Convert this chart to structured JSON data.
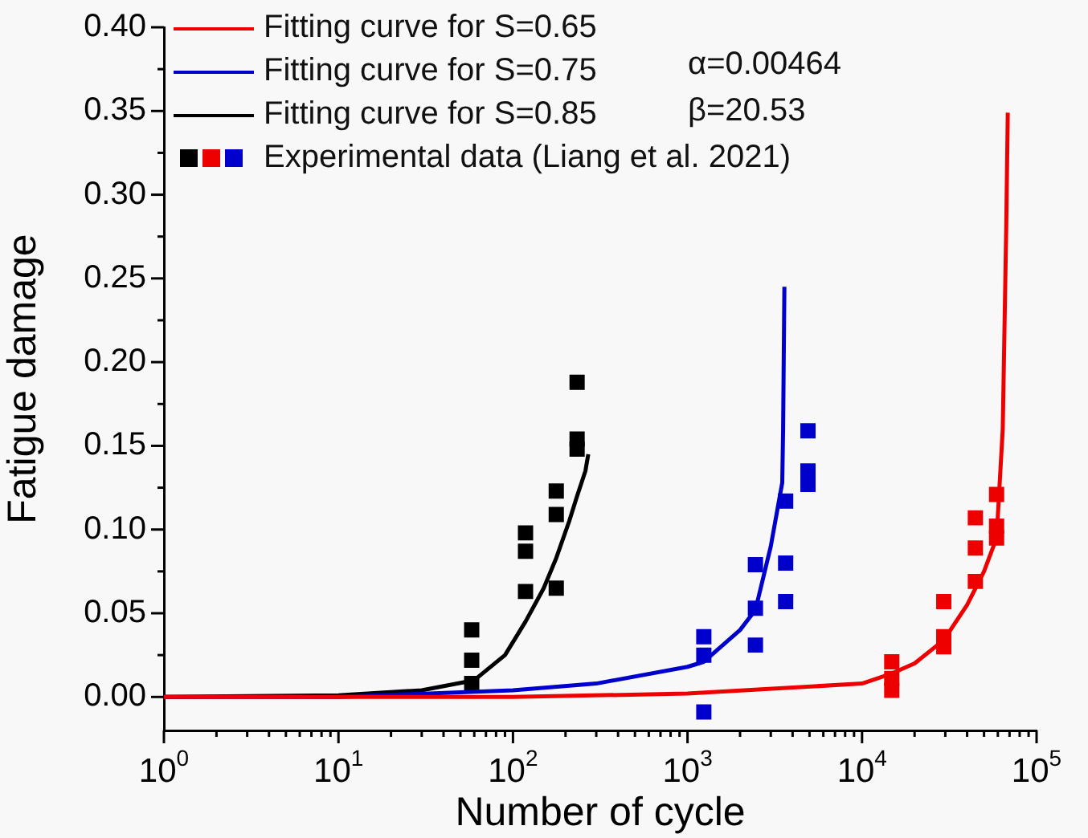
{
  "chart_data": {
    "type": "line",
    "xlabel": "Number of cycle",
    "ylabel": "Fatigue damage",
    "log": "x",
    "grid": false,
    "legend": "top left",
    "line_style": "solid",
    "xlim": [
      1,
      100000
    ],
    "ylim": [
      -0.02,
      0.4
    ],
    "xticks": [
      {
        "value": 1,
        "label": "10$^{0}$"
      },
      {
        "value": 2,
        "label": null
      },
      {
        "value": 3,
        "label": null
      },
      {
        "value": 4,
        "label": null
      },
      {
        "value": 5,
        "label": null
      },
      {
        "value": 6,
        "label": null
      },
      {
        "value": 7,
        "label": null
      },
      {
        "value": 8,
        "label": null
      },
      {
        "value": 9,
        "label": null
      },
      {
        "value": 10,
        "label": "10$^{1}$"
      },
      {
        "value": 20,
        "label": null
      },
      {
        "value": 30,
        "label": null
      },
      {
        "value": 40,
        "label": null
      },
      {
        "value": 50,
        "label": null
      },
      {
        "value": 60,
        "label": null
      },
      {
        "value": 70,
        "label": null
      },
      {
        "value": 80,
        "label": null
      },
      {
        "value": 90,
        "label": null
      },
      {
        "value": 100,
        "label": "10$^{2}$"
      },
      {
        "value": 200,
        "label": null
      },
      {
        "value": 300,
        "label": null
      },
      {
        "value": 400,
        "label": null
      },
      {
        "value": 500,
        "label": null
      },
      {
        "value": 600,
        "label": null
      },
      {
        "value": 700,
        "label": null
      },
      {
        "value": 800,
        "label": null
      },
      {
        "value": 900,
        "label": null
      },
      {
        "value": 1000,
        "label": "10$^{3}$"
      },
      {
        "value": 2000,
        "label": null
      },
      {
        "value": 3000,
        "label": null
      },
      {
        "value": 4000,
        "label": null
      },
      {
        "value": 5000,
        "label": null
      },
      {
        "value": 6000,
        "label": null
      },
      {
        "value": 7000,
        "label": null
      },
      {
        "value": 8000,
        "label": null
      },
      {
        "value": 9000,
        "label": null
      },
      {
        "value": 10000,
        "label": "10$^{4}$"
      },
      {
        "value": 20000,
        "label": null
      },
      {
        "value": 30000,
        "label": null
      },
      {
        "value": 40000,
        "label": null
      },
      {
        "value": 50000,
        "label": null
      },
      {
        "value": 60000,
        "label": null
      },
      {
        "value": 70000,
        "label": null
      },
      {
        "value": 80000,
        "label": null
      },
      {
        "value": 90000,
        "label": null
      },
      {
        "value": 100000,
        "label": "10$^{5}$"
      }
    ],
    "yticks": [
      {
        "value": 0,
        "label": "0.00"
      },
      {
        "value": 0.025,
        "label": null
      },
      {
        "value": 0.05,
        "label": "0.05"
      },
      {
        "value": 0.075,
        "label": null
      },
      {
        "value": 0.1,
        "label": "0.10"
      },
      {
        "value": 0.125,
        "label": null
      },
      {
        "value": 0.15,
        "label": "0.15"
      },
      {
        "value": 0.175,
        "label": null
      },
      {
        "value": 0.2,
        "label": "0.20"
      },
      {
        "value": 0.225,
        "label": null
      },
      {
        "value": 0.25,
        "label": "0.25"
      },
      {
        "value": 0.275,
        "label": null
      },
      {
        "value": 0.3,
        "label": "0.30"
      },
      {
        "value": 0.325,
        "label": null
      },
      {
        "value": 0.35,
        "label": "0.35"
      },
      {
        "value": 0.375,
        "label": null
      },
      {
        "value": 0.4,
        "label": "0.40"
      }
    ],
    "annotations": [
      "α=0.00464",
      "β=20.53"
    ],
    "series": [
      {
        "name": "Fitting curve for S=0.65",
        "color": "#ee0000",
        "x": [
          1,
          100,
          1000,
          10000,
          14800,
          20000,
          29400,
          40000,
          50000,
          59000,
          64000,
          67000,
          68400
        ],
        "values": [
          0,
          0,
          0.002,
          0.008,
          0.014,
          0.02,
          0.034,
          0.055,
          0.075,
          0.095,
          0.16,
          0.28,
          0.349
        ]
      },
      {
        "name": "Fitting curve for S=0.75",
        "color": "#0000cc",
        "x": [
          1,
          10,
          100,
          300,
          1000,
          1240,
          2000,
          2450,
          3000,
          3490,
          3530,
          3590
        ],
        "values": [
          0,
          0,
          0.004,
          0.008,
          0.018,
          0.021,
          0.04,
          0.052,
          0.09,
          0.128,
          0.16,
          0.245
        ]
      },
      {
        "name": "Fitting curve for S=0.85",
        "color": "#000000",
        "x": [
          1,
          10,
          30,
          60,
          90,
          118,
          150,
          177,
          210,
          233,
          260,
          270
        ],
        "values": [
          0,
          0.001,
          0.004,
          0.01,
          0.025,
          0.045,
          0.065,
          0.083,
          0.105,
          0.12,
          0.135,
          0.145
        ]
      },
      {
        "type": "scatter",
        "marker": "square",
        "color": "#000000",
        "x": [
          58,
          58,
          58,
          118,
          118,
          118,
          177,
          177,
          177,
          233,
          233,
          233
        ],
        "values": [
          0.04,
          0.022,
          0.008,
          0.098,
          0.087,
          0.063,
          0.123,
          0.109,
          0.065,
          0.188,
          0.154,
          0.148
        ]
      },
      {
        "type": "scatter",
        "marker": "square",
        "color": "#ee0000",
        "x": [
          14800,
          14800,
          14800,
          29400,
          29400,
          29400,
          44600,
          44600,
          44600,
          59000,
          59000,
          59000
        ],
        "values": [
          0.021,
          0.011,
          0.004,
          0.057,
          0.036,
          0.03,
          0.107,
          0.089,
          0.069,
          0.121,
          0.102,
          0.095
        ]
      },
      {
        "name": "Experimental data (Liang et al. 2021)",
        "type": "scatter",
        "marker": "square",
        "color": "#0000cc",
        "x": [
          1240,
          1240,
          1240,
          2450,
          2450,
          2450,
          3650,
          3650,
          3650,
          4900,
          4900,
          4900
        ],
        "values": [
          0.036,
          0.025,
          -0.009,
          0.079,
          0.053,
          0.031,
          0.117,
          0.08,
          0.057,
          0.159,
          0.135,
          0.127
        ]
      }
    ]
  }
}
